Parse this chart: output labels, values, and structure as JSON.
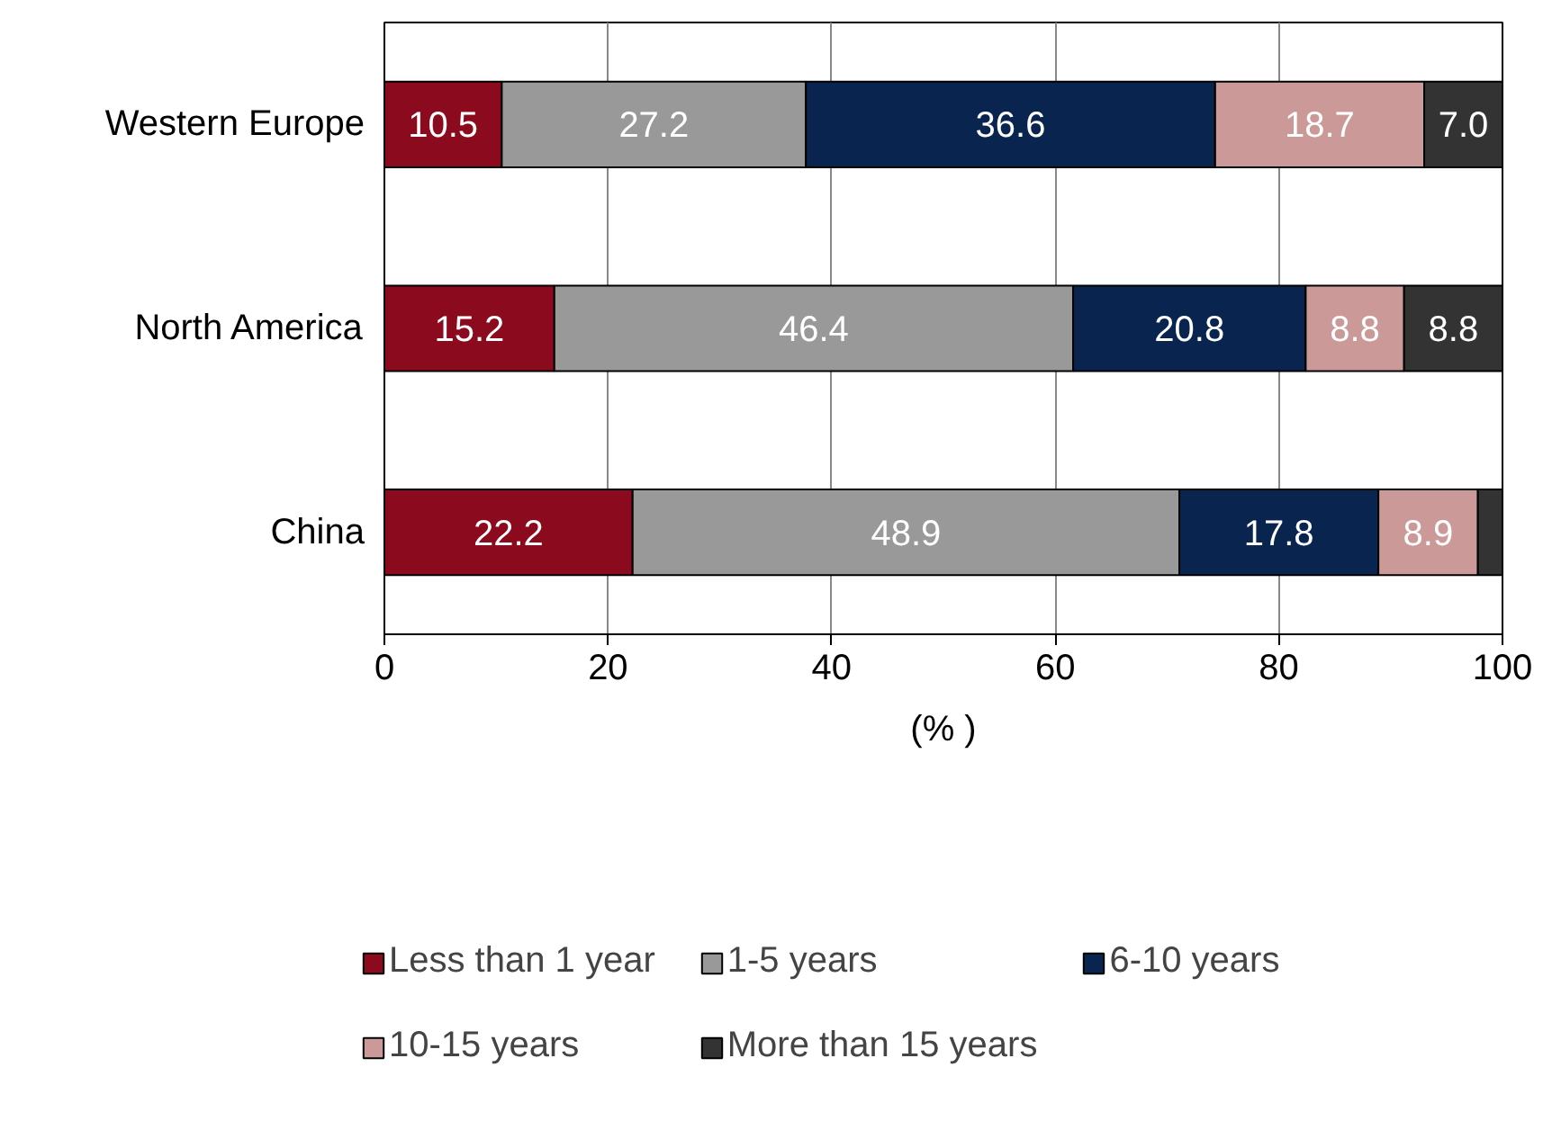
{
  "chart_data": {
    "type": "bar",
    "orientation": "horizontal",
    "stacked": true,
    "xlabel": "(% )",
    "categories": [
      "Western Europe",
      "North America",
      "China"
    ],
    "series": [
      {
        "name": "Less than 1 year",
        "color": "#8b0a1e",
        "values": [
          10.5,
          15.2,
          22.2
        ],
        "value_labels": [
          "10.5",
          "15.2",
          "22.2"
        ]
      },
      {
        "name": "1-5 years",
        "color": "#999999",
        "values": [
          27.2,
          46.4,
          48.9
        ],
        "value_labels": [
          "27.2",
          "46.4",
          "48.9"
        ]
      },
      {
        "name": "6-10 years",
        "color": "#0a2450",
        "values": [
          36.6,
          20.8,
          17.8
        ],
        "value_labels": [
          "36.6",
          "20.8",
          "17.8"
        ]
      },
      {
        "name": "10-15 years",
        "color": "#cc9999",
        "values": [
          18.7,
          8.8,
          8.9
        ],
        "value_labels": [
          "18.7",
          "8.8",
          "8.9"
        ]
      },
      {
        "name": "More than 15 years",
        "color": "#333333",
        "values": [
          7.0,
          8.8,
          2.2
        ],
        "value_labels": [
          "7.0",
          "8.8",
          null
        ]
      }
    ],
    "xlim": [
      0,
      100
    ],
    "xticks": [
      0,
      20,
      40,
      60,
      80,
      100
    ],
    "grid": "x",
    "legend": "bottom"
  }
}
